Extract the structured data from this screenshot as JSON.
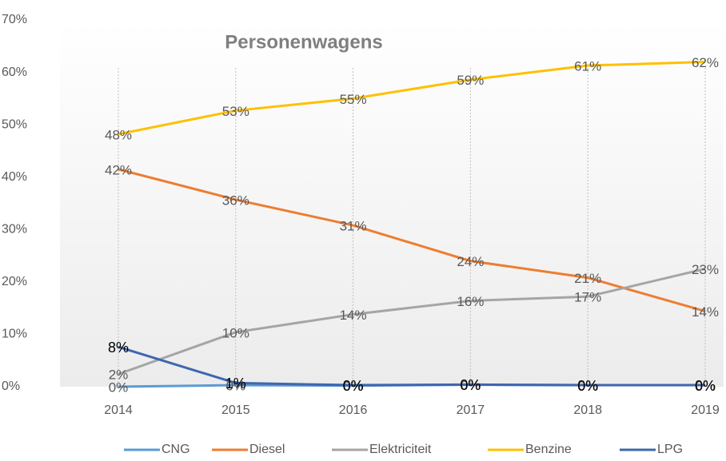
{
  "chart_data": {
    "type": "line",
    "title": "Personenwagens",
    "categories": [
      "2014",
      "2015",
      "2016",
      "2017",
      "2018",
      "2019"
    ],
    "ylim": [
      0,
      70
    ],
    "yticks": [
      {
        "value": 0,
        "label": "0%"
      },
      {
        "value": 10,
        "label": "10%"
      },
      {
        "value": 20,
        "label": "20%"
      },
      {
        "value": 30,
        "label": "30%"
      },
      {
        "value": 40,
        "label": "40%"
      },
      {
        "value": 50,
        "label": "50%"
      },
      {
        "value": 60,
        "label": "60%"
      },
      {
        "value": 70,
        "label": "70%"
      }
    ],
    "grid": "vertical-dotted",
    "legend": "bottom",
    "series": [
      {
        "name": "CNG",
        "color": "#5b9bd5",
        "label_color": "#595959",
        "values": [
          0,
          0.3,
          0.2,
          0.4,
          0.3,
          0.3
        ],
        "value_labels": [
          "0%",
          "0%",
          "0%",
          "0%",
          "0%",
          "0%"
        ]
      },
      {
        "name": "Diesel",
        "color": "#ed7d31",
        "label_color": "#595959",
        "values": [
          41.5,
          35.7,
          30.8,
          24,
          20.8,
          14.4
        ],
        "value_labels": [
          "42%",
          "36%",
          "31%",
          "24%",
          "21%",
          "14%"
        ]
      },
      {
        "name": "Elektriciteit",
        "color": "#a5a5a5",
        "label_color": "#595959",
        "values": [
          2.4,
          10.4,
          13.8,
          16.4,
          17.2,
          22.5
        ],
        "value_labels": [
          "2%",
          "10%",
          "14%",
          "16%",
          "17%",
          "23%"
        ]
      },
      {
        "name": "Benzine",
        "color": "#ffc000",
        "label_color": "#595959",
        "values": [
          48.2,
          52.7,
          55,
          58.6,
          61.3,
          62
        ],
        "value_labels": [
          "48%",
          "53%",
          "55%",
          "59%",
          "61%",
          "62%"
        ]
      },
      {
        "name": "LPG",
        "color": "#3f66b0",
        "label_color": "#000000",
        "values": [
          7.6,
          0.7,
          0.3,
          0.4,
          0.3,
          0.3
        ],
        "value_labels": [
          "8%",
          "1%",
          "0%",
          "0%",
          "0%",
          "0%"
        ]
      }
    ]
  }
}
